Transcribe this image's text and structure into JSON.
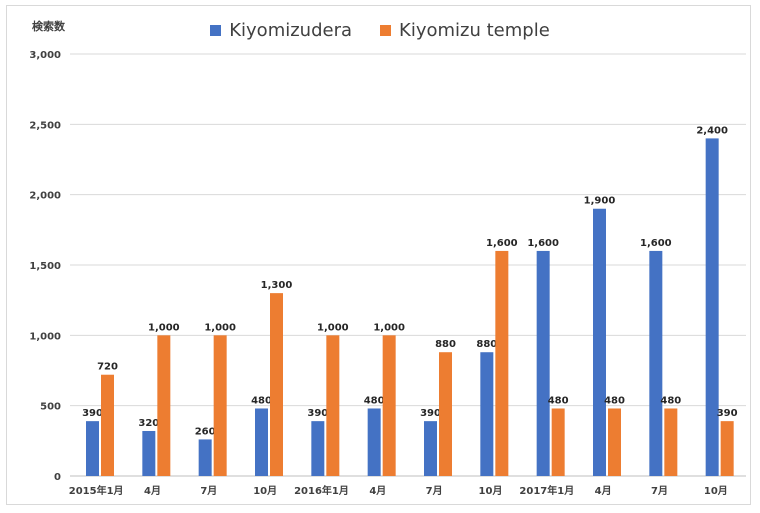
{
  "chart_data": {
    "type": "bar",
    "y_axis_title": "検索数",
    "categories": [
      "2015年1月",
      "4月",
      "7月",
      "10月",
      "2016年1月",
      "4月",
      "7月",
      "10月",
      "2017年1月",
      "4月",
      "7月",
      "10月"
    ],
    "series": [
      {
        "name": "Kiyomizudera",
        "color": "#4472c4",
        "values": [
          390,
          320,
          260,
          480,
          390,
          480,
          390,
          880,
          1600,
          1900,
          1600,
          2400
        ],
        "labels": [
          "390",
          "320",
          "260",
          "480",
          "390",
          "480",
          "390",
          "880",
          "1,600",
          "1,900",
          "1,600",
          "2,400"
        ]
      },
      {
        "name": "Kiyomizu temple",
        "color": "#ed7d31",
        "values": [
          720,
          1000,
          1000,
          1300,
          1000,
          1000,
          880,
          1600,
          480,
          480,
          480,
          390
        ],
        "labels": [
          "720",
          "1,000",
          "1,000",
          "1,300",
          "1,000",
          "1,000",
          "880",
          "1,600",
          "480",
          "480",
          "480",
          "390"
        ]
      }
    ],
    "ylim": [
      0,
      3000
    ],
    "yticks": [
      0,
      500,
      1000,
      1500,
      2000,
      2500,
      3000
    ],
    "ytick_labels": [
      "0",
      "500",
      "1,000",
      "1,500",
      "2,000",
      "2,500",
      "3,000"
    ],
    "grid": true,
    "legend_position": "top-center"
  }
}
